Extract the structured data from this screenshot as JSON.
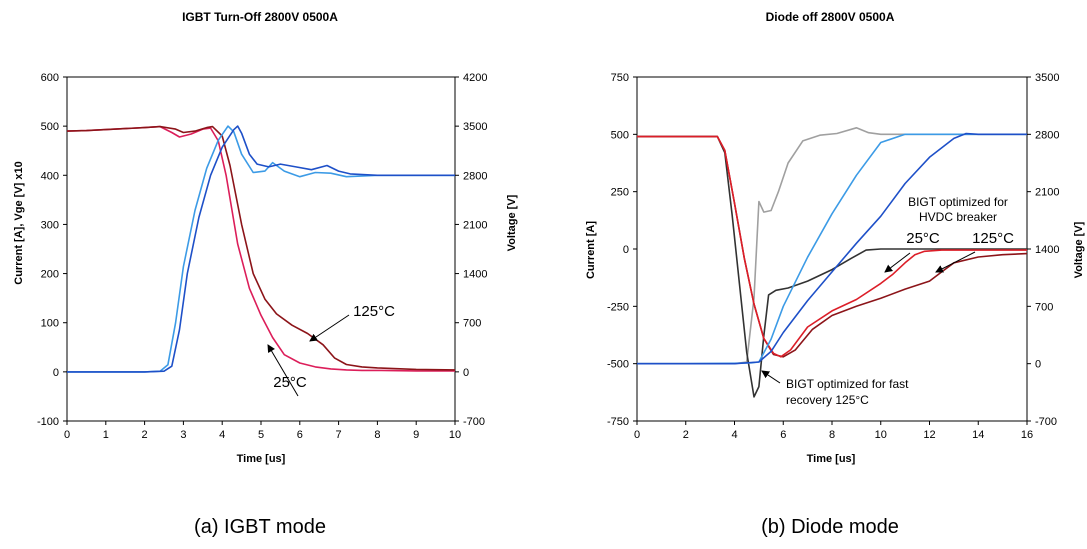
{
  "chart_data": [
    {
      "type": "line",
      "title": "IGBT Turn-Off 2800V 0500A",
      "xlabel": "Time [us]",
      "ylabel": "Current [A], Vge [V] x10",
      "y2label": "Voltage [V]",
      "xlim": [
        0,
        10
      ],
      "ylim": [
        -100,
        600
      ],
      "y2lim": [
        -700,
        4200
      ],
      "x_ticks": [
        0,
        1,
        2,
        3,
        4,
        5,
        6,
        7,
        8,
        9,
        10
      ],
      "y_ticks": [
        -100,
        0,
        100,
        200,
        300,
        400,
        500,
        600
      ],
      "y2_ticks": [
        -700,
        0,
        700,
        1400,
        2100,
        2800,
        3500,
        4200
      ],
      "grid": false,
      "caption": "(a) IGBT mode",
      "annotations": [
        "25°C",
        "125°C"
      ],
      "series": [
        {
          "color": "#dc1e5a",
          "axis": "y",
          "x": [
            0,
            0.5,
            1,
            1.5,
            2,
            2.4,
            2.7,
            2.9,
            3.2,
            3.5,
            3.7,
            3.9,
            4.1,
            4.4,
            4.7,
            5.0,
            5.3,
            5.6,
            6.0,
            6.4,
            6.8,
            7.2,
            7.6,
            8,
            9,
            10
          ],
          "y": [
            490,
            491,
            493,
            495,
            497,
            499,
            487,
            478,
            484,
            494,
            496,
            470,
            400,
            260,
            170,
            115,
            70,
            35,
            18,
            10,
            6,
            4,
            3,
            3,
            2,
            2
          ]
        },
        {
          "color": "#8c1419",
          "axis": "y",
          "x": [
            0,
            0.5,
            1,
            1.5,
            2,
            2.4,
            2.8,
            3.0,
            3.3,
            3.6,
            3.75,
            4.0,
            4.2,
            4.5,
            4.8,
            5.1,
            5.4,
            5.8,
            6.2,
            6.6,
            6.9,
            7.2,
            7.6,
            8,
            9,
            10
          ],
          "y": [
            490,
            491,
            493,
            495,
            497,
            499,
            494,
            487,
            490,
            497,
            499,
            480,
            420,
            300,
            200,
            148,
            118,
            95,
            78,
            55,
            28,
            15,
            10,
            8,
            5,
            4
          ]
        },
        {
          "color": "#3c9be6",
          "axis": "y2",
          "x": [
            0,
            1,
            2,
            2.4,
            2.6,
            2.8,
            3.0,
            3.3,
            3.6,
            3.9,
            4.15,
            4.3,
            4.5,
            4.8,
            5.1,
            5.3,
            5.6,
            6.0,
            6.4,
            6.8,
            7.2,
            8,
            9,
            10
          ],
          "y": [
            0,
            0,
            0,
            10,
            100,
            700,
            1500,
            2300,
            2900,
            3300,
            3500,
            3420,
            3100,
            2840,
            2860,
            2980,
            2860,
            2780,
            2840,
            2830,
            2780,
            2800,
            2800,
            2800
          ]
        },
        {
          "color": "#1e50c8",
          "axis": "y2",
          "x": [
            0,
            1,
            2,
            2.5,
            2.7,
            2.9,
            3.1,
            3.4,
            3.7,
            4.0,
            4.3,
            4.4,
            4.5,
            4.7,
            4.9,
            5.2,
            5.5,
            5.9,
            6.3,
            6.7,
            7.0,
            7.3,
            8,
            9,
            10
          ],
          "y": [
            0,
            0,
            0,
            10,
            80,
            600,
            1400,
            2200,
            2800,
            3200,
            3450,
            3500,
            3400,
            3100,
            2960,
            2920,
            2960,
            2920,
            2880,
            2940,
            2860,
            2820,
            2800,
            2800,
            2800
          ]
        }
      ]
    },
    {
      "type": "line",
      "title": "Diode off 2800V 0500A",
      "xlabel": "Time [us]",
      "ylabel": "Current [A]",
      "y2label": "Voltage [V]",
      "xlim": [
        0,
        16
      ],
      "ylim": [
        -750,
        750
      ],
      "y2lim": [
        -700,
        3500
      ],
      "x_ticks": [
        0,
        2,
        4,
        6,
        8,
        10,
        12,
        14,
        16
      ],
      "y_ticks": [
        -750,
        -500,
        -250,
        0,
        250,
        500,
        750
      ],
      "y2_ticks": [
        -700,
        0,
        700,
        1400,
        2100,
        2800,
        3500
      ],
      "grid": false,
      "caption": "(b) Diode mode",
      "annotations": [
        "BIGT optimized for\nHVDC breaker",
        "25°C",
        "125°C",
        "BIGT optimized for fast\nrecovery 125°C"
      ],
      "series": [
        {
          "color": "#a0a0a0",
          "axis": "y2",
          "x": [
            0,
            2,
            4,
            4.5,
            4.8,
            5.0,
            5.2,
            5.5,
            5.8,
            6.2,
            6.8,
            7.5,
            8.2,
            9.0,
            9.5,
            10,
            12,
            14,
            16
          ],
          "y": [
            0,
            0,
            0,
            20,
            800,
            1980,
            1850,
            1870,
            2100,
            2450,
            2720,
            2790,
            2810,
            2880,
            2820,
            2800,
            2800,
            2800,
            2800
          ]
        },
        {
          "color": "#323232",
          "axis": "y",
          "x": [
            0,
            2,
            3.3,
            3.6,
            3.9,
            4.2,
            4.5,
            4.8,
            5.0,
            5.2,
            5.4,
            5.7,
            6.2,
            7.0,
            8.0,
            8.8,
            9.4,
            10,
            12,
            14,
            16
          ],
          "y": [
            490,
            490,
            490,
            420,
            150,
            -150,
            -450,
            -645,
            -600,
            -380,
            -200,
            -180,
            -170,
            -140,
            -90,
            -40,
            -5,
            0,
            0,
            0,
            0
          ]
        },
        {
          "color": "#8c1419",
          "axis": "y",
          "x": [
            0,
            2,
            3.3,
            3.6,
            4.0,
            4.4,
            4.8,
            5.2,
            5.6,
            6.0,
            6.5,
            7.2,
            8.0,
            9.0,
            10,
            11,
            12,
            12.5,
            13,
            14,
            15,
            16
          ],
          "y": [
            490,
            490,
            490,
            430,
            200,
            -40,
            -240,
            -390,
            -460,
            -470,
            -440,
            -350,
            -290,
            -250,
            -215,
            -175,
            -140,
            -100,
            -60,
            -35,
            -25,
            -20
          ]
        },
        {
          "color": "#dc1e28",
          "axis": "y",
          "x": [
            0,
            2,
            3.3,
            3.6,
            4.0,
            4.4,
            4.8,
            5.2,
            5.6,
            5.9,
            6.3,
            7.0,
            8.0,
            9.0,
            10,
            10.5,
            11,
            11.4,
            11.8,
            12.5,
            14,
            16
          ],
          "y": [
            490,
            490,
            490,
            430,
            200,
            -40,
            -240,
            -390,
            -455,
            -470,
            -440,
            -340,
            -270,
            -220,
            -150,
            -110,
            -60,
            -25,
            -10,
            -5,
            -5,
            -5
          ]
        },
        {
          "color": "#3c9be6",
          "axis": "y2",
          "x": [
            0,
            2,
            4,
            4.7,
            5.0,
            5.5,
            6.0,
            7.0,
            8.0,
            9.0,
            10.0,
            11.0,
            12,
            16
          ],
          "y": [
            0,
            0,
            5,
            10,
            20,
            300,
            700,
            1300,
            1830,
            2300,
            2700,
            2800,
            2800,
            2800
          ]
        },
        {
          "color": "#1e50c8",
          "axis": "y2",
          "x": [
            0,
            2,
            4,
            5.0,
            5.5,
            6.0,
            7.0,
            8.0,
            9.0,
            10,
            11,
            12,
            13,
            13.5,
            14,
            16
          ],
          "y": [
            0,
            0,
            0,
            20,
            150,
            380,
            770,
            1120,
            1470,
            1800,
            2200,
            2520,
            2750,
            2810,
            2800,
            2800
          ]
        }
      ]
    }
  ]
}
